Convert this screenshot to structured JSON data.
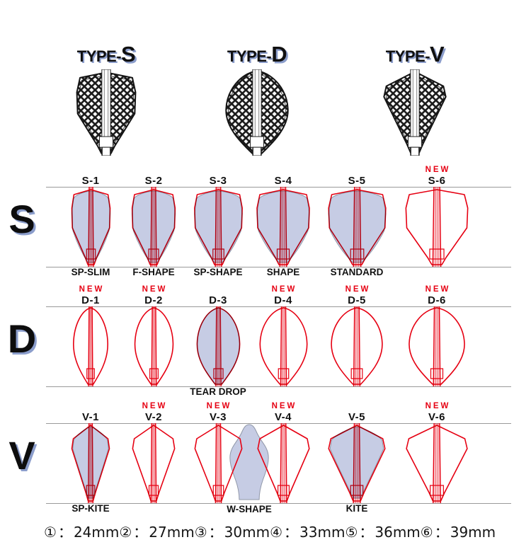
{
  "header": {
    "types": [
      {
        "prefix": "TYPE-",
        "letter": "S"
      },
      {
        "prefix": "TYPE-",
        "letter": "D"
      },
      {
        "prefix": "TYPE-",
        "letter": "V"
      }
    ]
  },
  "new_badge": "NEW",
  "rows": [
    {
      "letter": "S",
      "cells": [
        {
          "id": "S-1",
          "is_new": false,
          "label": "SP-SLIM",
          "filled": true
        },
        {
          "id": "S-2",
          "is_new": false,
          "label": "F-SHAPE",
          "filled": true
        },
        {
          "id": "S-3",
          "is_new": false,
          "label": "SP-SHAPE",
          "filled": true
        },
        {
          "id": "S-4",
          "is_new": false,
          "label": "SHAPE",
          "filled": true
        },
        {
          "id": "S-5",
          "is_new": false,
          "label": "STANDARD",
          "filled": true
        },
        {
          "id": "S-6",
          "is_new": true,
          "label": "",
          "filled": false
        }
      ]
    },
    {
      "letter": "D",
      "cells": [
        {
          "id": "D-1",
          "is_new": true,
          "label": "",
          "filled": false
        },
        {
          "id": "D-2",
          "is_new": true,
          "label": "",
          "filled": false
        },
        {
          "id": "D-3",
          "is_new": false,
          "label": "TEAR DROP",
          "filled": true
        },
        {
          "id": "D-4",
          "is_new": true,
          "label": "",
          "filled": false
        },
        {
          "id": "D-5",
          "is_new": true,
          "label": "",
          "filled": false
        },
        {
          "id": "D-6",
          "is_new": true,
          "label": "",
          "filled": false
        }
      ]
    },
    {
      "letter": "V",
      "extra_shape": {
        "label": "W-SHAPE"
      },
      "cells": [
        {
          "id": "V-1",
          "is_new": false,
          "label": "SP-KITE",
          "filled": true
        },
        {
          "id": "V-2",
          "is_new": true,
          "label": "",
          "filled": false
        },
        {
          "id": "V-3",
          "is_new": true,
          "label": "",
          "filled": false
        },
        {
          "id": "V-4",
          "is_new": true,
          "label": "",
          "filled": false
        },
        {
          "id": "V-5",
          "is_new": false,
          "label": "KITE",
          "filled": true
        },
        {
          "id": "V-6",
          "is_new": true,
          "label": "",
          "filled": false
        }
      ]
    }
  ],
  "size_legend": [
    {
      "symbol": "①",
      "value": "24mm"
    },
    {
      "symbol": "②",
      "value": "27mm"
    },
    {
      "symbol": "③",
      "value": "30mm"
    },
    {
      "symbol": "④",
      "value": "33mm"
    },
    {
      "symbol": "⑤",
      "value": "36mm"
    },
    {
      "symbol": "⑥",
      "value": "39mm"
    }
  ],
  "legend_separator": "：",
  "colors": {
    "red": "#e60012",
    "flight_fill": "#c6cce4",
    "silhouette_stroke": "#9097a8",
    "text": "#1a1a1a",
    "shadow_blue": "#8b9dcb",
    "line_gray": "#9a9a9a",
    "hatch_black": "#1a1a1a"
  }
}
